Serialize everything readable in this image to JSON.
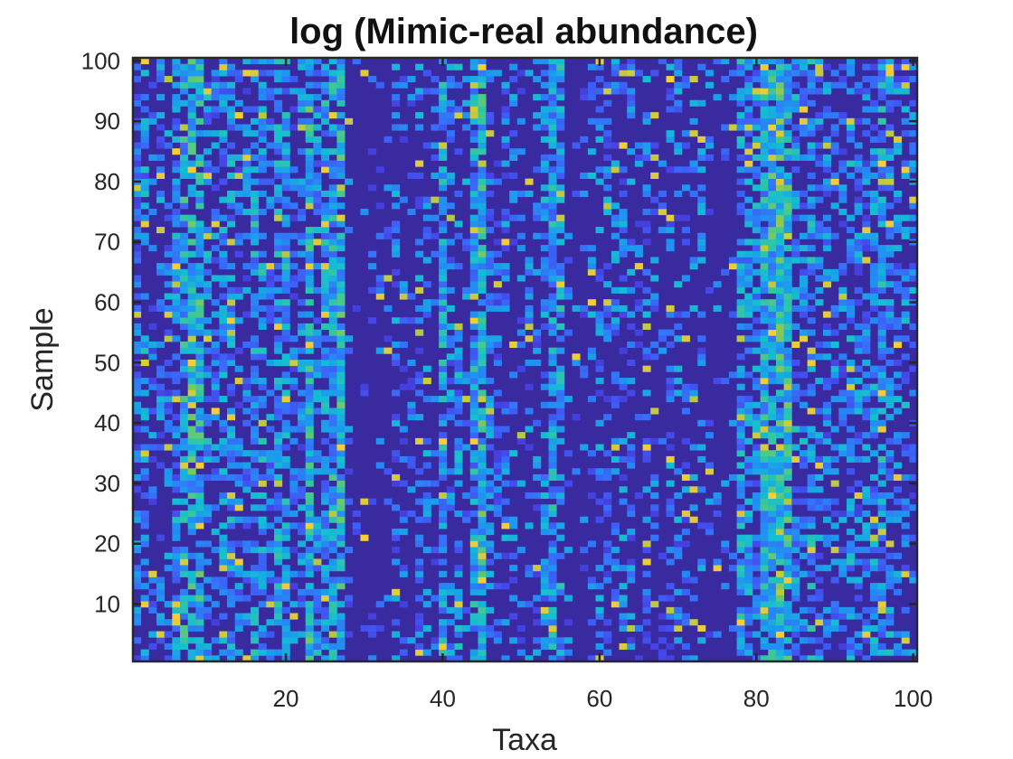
{
  "chart_data": {
    "type": "heatmap",
    "title": "log (Mimic-real abundance)",
    "xlabel": "Taxa",
    "ylabel": "Sample",
    "xlim": [
      0.5,
      100.5
    ],
    "ylim": [
      0.5,
      100.5
    ],
    "n_taxa": 100,
    "n_samples": 100,
    "x_ticks": [
      20,
      40,
      60,
      80,
      100
    ],
    "y_ticks": [
      10,
      20,
      30,
      40,
      50,
      60,
      70,
      80,
      90,
      100
    ],
    "grid": false,
    "colormap": "parula",
    "colors": {
      "background_level": "#3a2aa0",
      "low": "#3d5ef7",
      "mid_low": "#2a9df0",
      "mid": "#19c2c2",
      "mid_high": "#6fcf6a",
      "high": "#f7c93b"
    },
    "column_density": [
      0.55,
      0.45,
      0.35,
      0.4,
      0.35,
      0.55,
      0.7,
      0.8,
      0.75,
      0.55,
      0.45,
      0.55,
      0.6,
      0.45,
      0.4,
      0.65,
      0.6,
      0.45,
      0.7,
      0.75,
      0.4,
      0.5,
      0.8,
      0.55,
      0.75,
      0.85,
      0.85,
      0.1,
      0.1,
      0.1,
      0.1,
      0.15,
      0.1,
      0.3,
      0.2,
      0.15,
      0.4,
      0.35,
      0.15,
      0.75,
      0.4,
      0.45,
      0.25,
      0.8,
      0.9,
      0.45,
      0.25,
      0.4,
      0.3,
      0.2,
      0.2,
      0.3,
      0.55,
      0.8,
      0.7,
      0.1,
      0.1,
      0.15,
      0.25,
      0.35,
      0.3,
      0.25,
      0.3,
      0.4,
      0.2,
      0.35,
      0.25,
      0.2,
      0.3,
      0.25,
      0.2,
      0.3,
      0.25,
      0.15,
      0.1,
      0.1,
      0.15,
      0.7,
      0.6,
      0.5,
      0.85,
      0.9,
      0.95,
      0.85,
      0.5,
      0.55,
      0.6,
      0.45,
      0.4,
      0.35,
      0.45,
      0.55,
      0.4,
      0.45,
      0.6,
      0.75,
      0.55,
      0.45,
      0.5,
      0.4
    ],
    "column_level": [
      0.3,
      0.4,
      0.3,
      0.35,
      0.35,
      0.4,
      0.5,
      0.55,
      0.55,
      0.4,
      0.35,
      0.4,
      0.4,
      0.35,
      0.35,
      0.45,
      0.45,
      0.35,
      0.45,
      0.45,
      0.3,
      0.35,
      0.55,
      0.4,
      0.45,
      0.5,
      0.55,
      0.3,
      0.3,
      0.3,
      0.3,
      0.3,
      0.3,
      0.35,
      0.3,
      0.3,
      0.35,
      0.35,
      0.3,
      0.45,
      0.35,
      0.4,
      0.35,
      0.45,
      0.55,
      0.35,
      0.3,
      0.35,
      0.35,
      0.3,
      0.3,
      0.35,
      0.4,
      0.45,
      0.45,
      0.3,
      0.3,
      0.3,
      0.35,
      0.35,
      0.35,
      0.35,
      0.35,
      0.35,
      0.3,
      0.35,
      0.35,
      0.3,
      0.35,
      0.35,
      0.3,
      0.35,
      0.35,
      0.3,
      0.3,
      0.3,
      0.3,
      0.45,
      0.4,
      0.4,
      0.5,
      0.55,
      0.6,
      0.55,
      0.4,
      0.4,
      0.45,
      0.35,
      0.35,
      0.35,
      0.35,
      0.4,
      0.35,
      0.35,
      0.4,
      0.45,
      0.4,
      0.35,
      0.4,
      0.35
    ],
    "seed": 12345
  }
}
